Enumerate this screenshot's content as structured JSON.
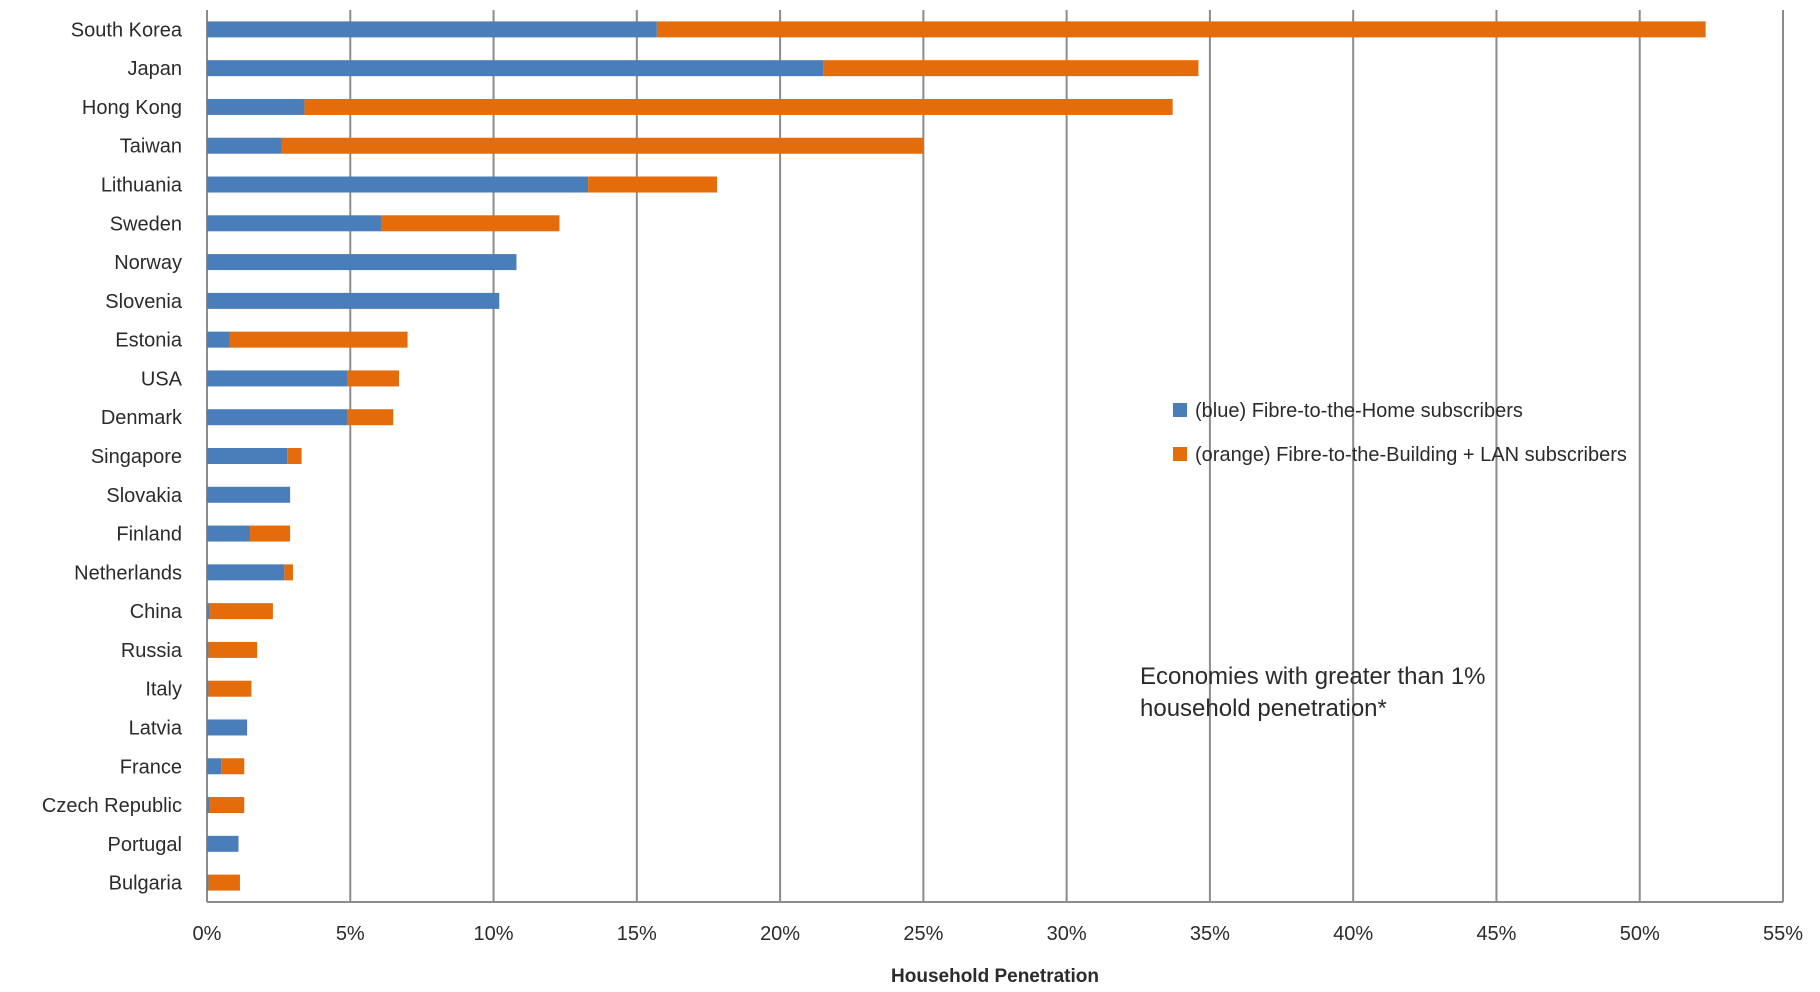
{
  "chart_data": {
    "type": "bar",
    "orientation": "horizontal",
    "stacked": true,
    "categories": [
      "South Korea",
      "Japan",
      "Hong Kong",
      "Taiwan",
      "Lithuania",
      "Sweden",
      "Norway",
      "Slovenia",
      "Estonia",
      "USA",
      "Denmark",
      "Singapore",
      "Slovakia",
      "Finland",
      "Netherlands",
      "China",
      "Russia",
      "Italy",
      "Latvia",
      "France",
      "Czech Republic",
      "Portugal",
      "Bulgaria"
    ],
    "series": [
      {
        "name": "(blue) Fibre-to-the-Home subscribers",
        "color": "#4a7ebb",
        "values": [
          15.7,
          21.5,
          3.4,
          2.6,
          13.3,
          6.1,
          10.8,
          10.2,
          0.8,
          4.9,
          4.9,
          2.8,
          2.9,
          1.5,
          2.7,
          0.1,
          0.05,
          0.05,
          1.4,
          0.5,
          0.1,
          1.1,
          0.05
        ]
      },
      {
        "name": "(orange) Fibre-to-the-Building + LAN subscribers",
        "color": "#e46c0a",
        "values": [
          36.6,
          13.1,
          30.3,
          22.4,
          4.5,
          6.2,
          0.0,
          0.0,
          6.2,
          1.8,
          1.6,
          0.5,
          0.0,
          1.4,
          0.3,
          2.2,
          1.7,
          1.5,
          0.0,
          0.8,
          1.2,
          0.0,
          1.1
        ]
      }
    ],
    "xlabel": "Household Penetration",
    "xlim": [
      0,
      55
    ],
    "xticks": [
      "0%",
      "5%",
      "10%",
      "15%",
      "20%",
      "25%",
      "30%",
      "35%",
      "40%",
      "45%",
      "50%",
      "55%"
    ],
    "grid": "vertical",
    "legend_position": "right-middle",
    "annotation": {
      "line1": "Economies with greater than 1%",
      "line2": "household penetration*"
    }
  }
}
